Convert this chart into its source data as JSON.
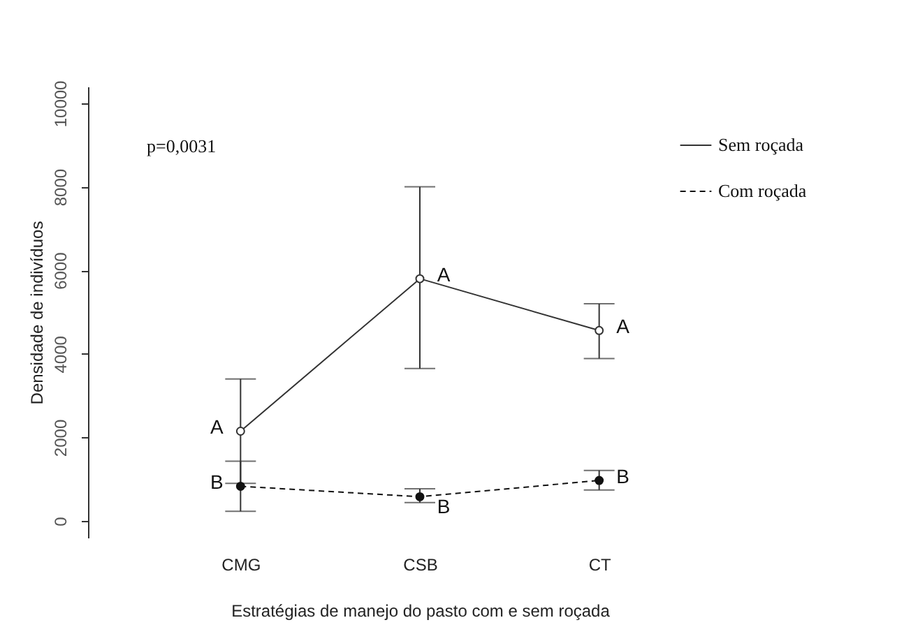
{
  "chart_data": {
    "type": "line",
    "xlabel": "Estratégias de manejo do pasto com e sem roçada",
    "ylabel": "Densidade de indivíduos",
    "categories": [
      "CMG",
      "CSB",
      "CT"
    ],
    "series": [
      {
        "name": "Sem roçada",
        "color": "#333333",
        "line_style": "solid",
        "values": [
          2150,
          5800,
          4560
        ],
        "errors": [
          [
            900,
            3400
          ],
          [
            3650,
            8000
          ],
          [
            3890,
            5200
          ]
        ]
      },
      {
        "name": "Com roçada",
        "color": "#111111",
        "line_style": "dashed",
        "values": [
          830,
          580,
          970
        ],
        "errors": [
          [
            230,
            1430
          ],
          [
            440,
            770
          ],
          [
            740,
            1210
          ]
        ]
      }
    ],
    "annotations": [
      "p=0,0031",
      {
        "text": "A",
        "x": "CMG",
        "y": 2150
      },
      {
        "text": "A",
        "x": "CSB",
        "y": 5800
      },
      {
        "text": "A",
        "x": "CT",
        "y": 4560
      },
      {
        "text": "B",
        "x": "CMG",
        "y": 830
      },
      {
        "text": "B",
        "x": "CSB",
        "y": 580
      },
      {
        "text": "B",
        "x": "CT",
        "y": 970
      }
    ],
    "ylim": [
      -400,
      10400
    ],
    "yticks": [
      0,
      2000,
      4000,
      6000,
      8000,
      10000
    ],
    "grid": false,
    "legend": "top right",
    "marker": "circle"
  }
}
